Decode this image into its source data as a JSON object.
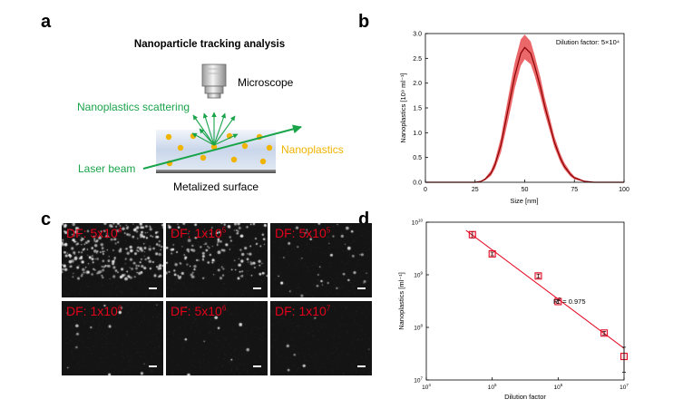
{
  "panel_letters": [
    "a",
    "b",
    "c",
    "d"
  ],
  "panel_a": {
    "title": "Nanoparticle tracking analysis",
    "microscope_label": "Microscope",
    "scattering_label": "Nanoplastics scattering",
    "nanoplastics_label": "Nanoplastics",
    "laser_label": "Laser beam",
    "surface_label": "Metalized surface",
    "colors": {
      "green": "#1aa44a",
      "orange": "#f0b400",
      "laser": "#1aa44a"
    }
  },
  "panel_c": {
    "images": [
      {
        "label_base": "DF: 5x10",
        "label_exp": "4"
      },
      {
        "label_base": "DF: 1x10",
        "label_exp": "5"
      },
      {
        "label_base": "DF: 5x10",
        "label_exp": "5"
      },
      {
        "label_base": "DF: 1x10",
        "label_exp": "6"
      },
      {
        "label_base": "DF: 5x10",
        "label_exp": "6"
      },
      {
        "label_base": "DF: 1x10",
        "label_exp": "7"
      }
    ],
    "label_color": "#e3001b"
  },
  "chart_data": [
    {
      "type": "line",
      "panel": "b",
      "annotation": "Dilution factor: 5×10⁴",
      "xlabel": "Size [nm]",
      "ylabel": "Nanoplastics [10⁹ ml⁻¹]",
      "xlim": [
        0,
        100
      ],
      "ylim": [
        0,
        3.0
      ],
      "xticks": [
        "0",
        "25",
        "50",
        "75",
        "100"
      ],
      "yticks": [
        "0.0",
        "0.5",
        "1.0",
        "1.5",
        "2.0",
        "2.5",
        "3.0"
      ],
      "series": [
        {
          "x": [
            0,
            25,
            28,
            30,
            33,
            35,
            38,
            40,
            43,
            45,
            48,
            50,
            53,
            55,
            58,
            60,
            63,
            65,
            68,
            70,
            73,
            75,
            80,
            85,
            90,
            100
          ],
          "y": [
            0,
            0,
            0.02,
            0.06,
            0.18,
            0.35,
            0.75,
            1.15,
            1.75,
            2.15,
            2.6,
            2.72,
            2.6,
            2.35,
            1.9,
            1.55,
            1.1,
            0.8,
            0.48,
            0.32,
            0.16,
            0.09,
            0.02,
            0,
            0,
            0
          ],
          "lower": [
            0,
            0,
            0.01,
            0.04,
            0.13,
            0.27,
            0.6,
            0.95,
            1.5,
            1.9,
            2.35,
            2.48,
            2.38,
            2.15,
            1.72,
            1.4,
            0.98,
            0.7,
            0.4,
            0.26,
            0.12,
            0.06,
            0.01,
            0,
            0,
            0
          ],
          "upper": [
            0,
            0,
            0.03,
            0.08,
            0.24,
            0.44,
            0.9,
            1.35,
            2.0,
            2.42,
            2.88,
            2.98,
            2.84,
            2.56,
            2.1,
            1.72,
            1.24,
            0.92,
            0.57,
            0.39,
            0.21,
            0.12,
            0.03,
            0,
            0,
            0
          ]
        }
      ],
      "colors": {
        "line": "#8b0000",
        "band": "#e8565a"
      }
    },
    {
      "type": "scatter",
      "panel": "d",
      "xscale": "log",
      "yscale": "log",
      "xlabel": "Dilution factor",
      "ylabel": "Nanoplastics [ml⁻¹]",
      "xlim": [
        10000,
        10000000
      ],
      "ylim": [
        10000000,
        10000000000
      ],
      "xticks": [
        {
          "base": "10",
          "exp": "4"
        },
        {
          "base": "10",
          "exp": "5"
        },
        {
          "base": "10",
          "exp": "6"
        },
        {
          "base": "10",
          "exp": "7"
        }
      ],
      "yticks": [
        {
          "base": "10",
          "exp": "7"
        },
        {
          "base": "10",
          "exp": "8"
        },
        {
          "base": "10",
          "exp": "9"
        },
        {
          "base": "10",
          "exp": "10"
        }
      ],
      "annotation": {
        "base": "R",
        "sup": "2",
        "rest": " = 0.975"
      },
      "points": [
        {
          "x": 50000,
          "y": 5800000000,
          "err": 800000000
        },
        {
          "x": 100000,
          "y": 2500000000,
          "err": 200000000
        },
        {
          "x": 500000,
          "y": 950000000,
          "err": 80000000
        },
        {
          "x": 1000000,
          "y": 310000000,
          "err": 25000000
        },
        {
          "x": 5000000,
          "y": 78000000,
          "err": 6000000
        },
        {
          "x": 10000000,
          "y": 28000000,
          "err": 14000000
        }
      ],
      "fit": {
        "x": [
          40000,
          10000000
        ],
        "y": [
          7000000000,
          40000000
        ]
      },
      "colors": {
        "marker": "#e3001b",
        "fit": "#e3001b"
      }
    }
  ]
}
